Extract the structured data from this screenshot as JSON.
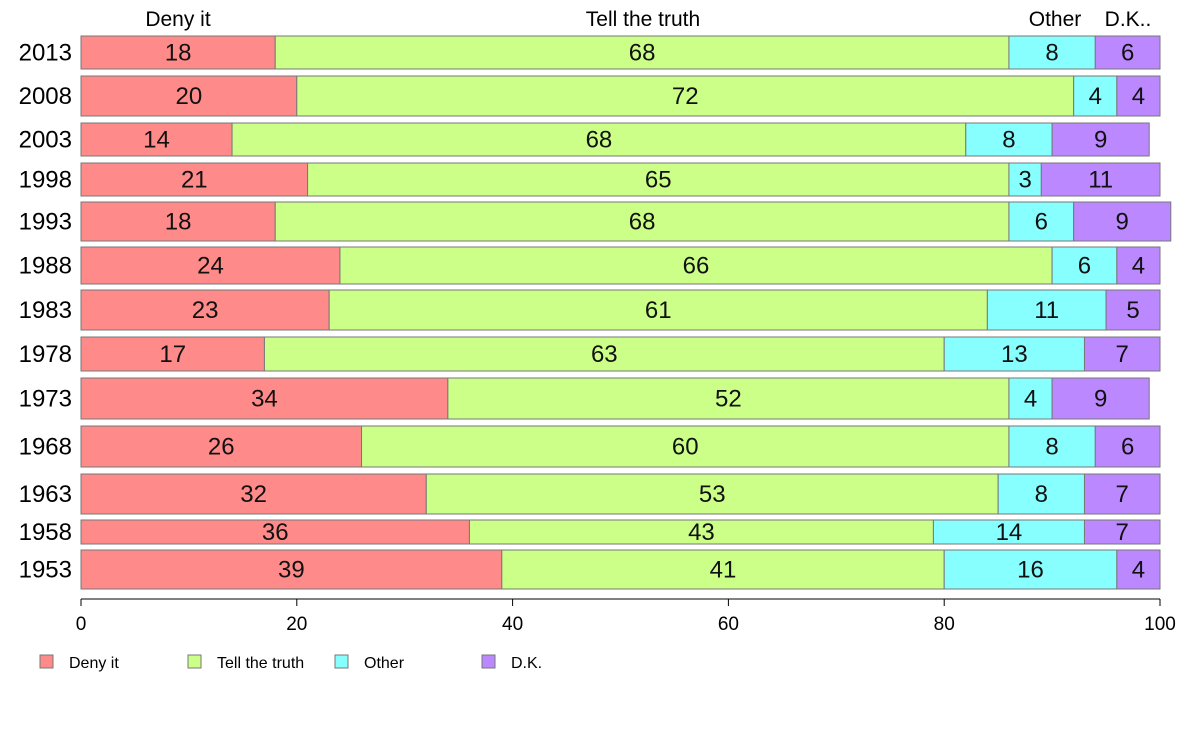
{
  "chart_data": {
    "type": "bar",
    "orientation": "horizontal",
    "stacked": true,
    "categories": [
      "2013",
      "2008",
      "2003",
      "1998",
      "1993",
      "1988",
      "1983",
      "1978",
      "1973",
      "1968",
      "1963",
      "1958",
      "1953"
    ],
    "series": [
      {
        "name": "Deny it",
        "color": "#ff8a8a",
        "values": [
          18,
          20,
          14,
          21,
          18,
          24,
          23,
          17,
          34,
          26,
          32,
          36,
          39
        ]
      },
      {
        "name": "Tell the truth",
        "color": "#ccff88",
        "values": [
          68,
          72,
          68,
          65,
          68,
          66,
          61,
          63,
          52,
          60,
          53,
          43,
          41
        ]
      },
      {
        "name": "Other",
        "color": "#88ffff",
        "values": [
          8,
          4,
          8,
          3,
          6,
          6,
          11,
          13,
          4,
          8,
          8,
          14,
          16
        ]
      },
      {
        "name": "D.K.",
        "color": "#bb88ff",
        "values": [
          6,
          4,
          9,
          11,
          9,
          4,
          5,
          7,
          9,
          6,
          7,
          7,
          4
        ]
      }
    ],
    "top_labels": [
      "Deny it",
      "Tell the truth",
      "Other",
      "D.K.."
    ],
    "xlim": [
      0,
      100
    ],
    "xticks": [
      0,
      20,
      40,
      60,
      80,
      100
    ],
    "grid": false,
    "legend_position": "bottom-left"
  }
}
